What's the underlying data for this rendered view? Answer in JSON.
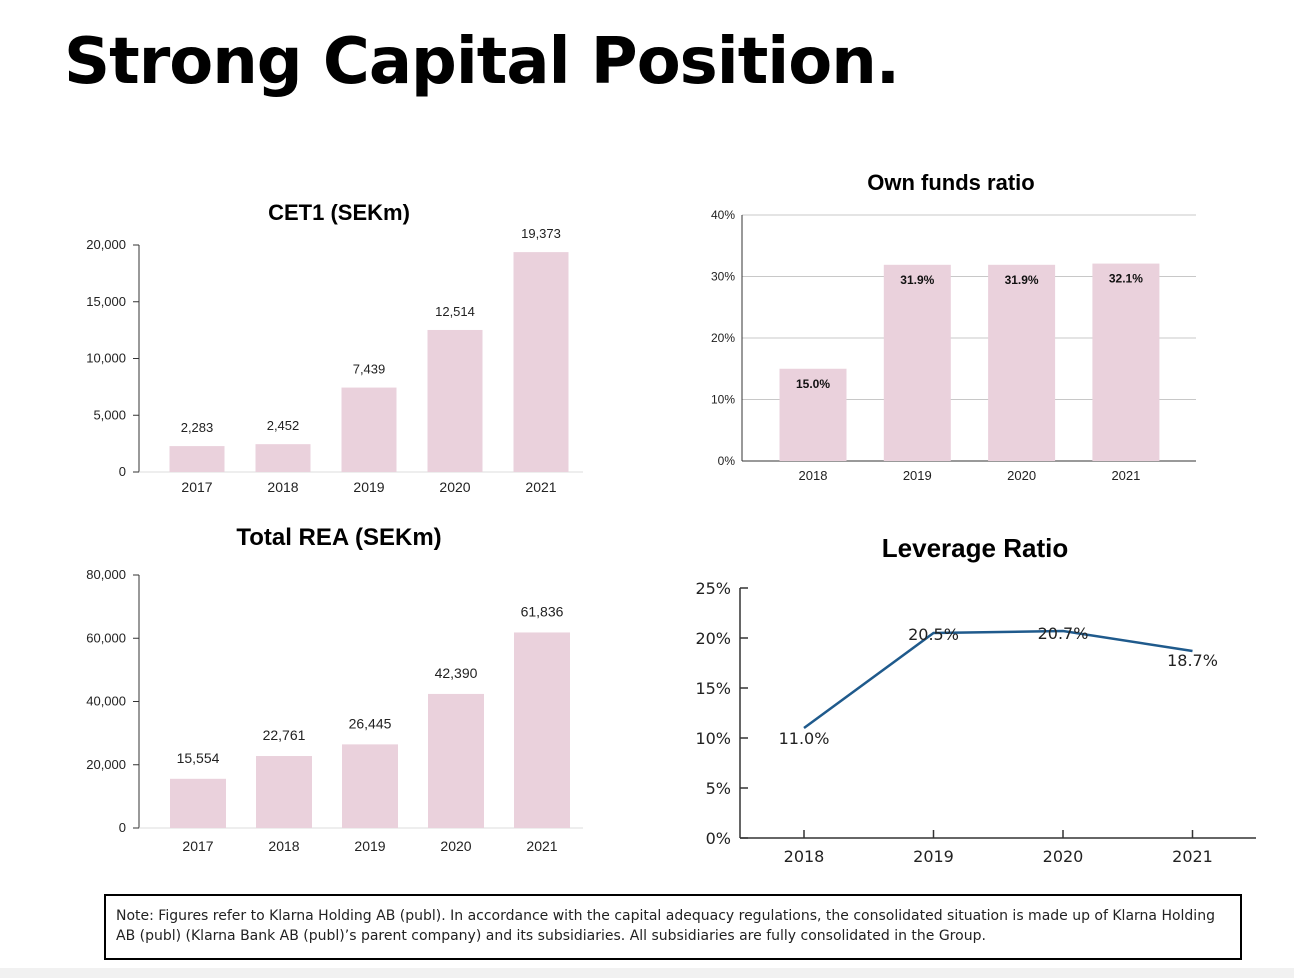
{
  "page": {
    "title": "Strong Capital Position."
  },
  "note": "Note: Figures refer to Klarna Holding AB (publ). In accordance with the capital adequacy regulations, the consolidated situation is made up of Klarna Holding AB (publ) (Klarna Bank AB (publ)’s parent company) and its subsidiaries. All subsidiaries are fully consolidated in the Group.",
  "colors": {
    "bar": "#ead1dc",
    "line": "#1f5a8c",
    "grid": "#c8c8c8",
    "axis": "#333333"
  },
  "chart_data": [
    {
      "id": "cet1",
      "type": "bar",
      "title": "CET1 (SEKm)",
      "categories": [
        "2017",
        "2018",
        "2019",
        "2020",
        "2021"
      ],
      "values": [
        2283,
        2452,
        7439,
        12514,
        19373
      ],
      "value_labels": [
        "2,283",
        "2,452",
        "7,439",
        "12,514",
        "19,373"
      ],
      "ylim": [
        0,
        20000
      ],
      "yticks": [
        0,
        5000,
        10000,
        15000,
        20000
      ],
      "ytick_labels": [
        "0",
        "5,000",
        "10,000",
        "15,000",
        "20,000"
      ],
      "grid": false,
      "xlabel": "",
      "ylabel": ""
    },
    {
      "id": "rea",
      "type": "bar",
      "title": "Total REA (SEKm)",
      "categories": [
        "2017",
        "2018",
        "2019",
        "2020",
        "2021"
      ],
      "values": [
        15554,
        22761,
        26445,
        42390,
        61836
      ],
      "value_labels": [
        "15,554",
        "22,761",
        "26,445",
        "42,390",
        "61,836"
      ],
      "ylim": [
        0,
        80000
      ],
      "yticks": [
        0,
        20000,
        40000,
        60000,
        80000
      ],
      "ytick_labels": [
        "0",
        "20,000",
        "40,000",
        "60,000",
        "80,000"
      ],
      "grid": false,
      "xlabel": "",
      "ylabel": ""
    },
    {
      "id": "own_funds",
      "type": "bar",
      "title": "Own funds ratio",
      "categories": [
        "2018",
        "2019",
        "2020",
        "2021"
      ],
      "values": [
        15.0,
        31.9,
        31.9,
        32.1
      ],
      "value_labels": [
        "15.0%",
        "31.9%",
        "31.9%",
        "32.1%"
      ],
      "ylim": [
        0,
        40
      ],
      "yticks": [
        0,
        10,
        20,
        30,
        40
      ],
      "ytick_labels": [
        "0%",
        "10%",
        "20%",
        "30%",
        "40%"
      ],
      "grid": true,
      "xlabel": "",
      "ylabel": ""
    },
    {
      "id": "leverage",
      "type": "line",
      "title": "Leverage Ratio",
      "categories": [
        "2018",
        "2019",
        "2020",
        "2021"
      ],
      "values": [
        11.0,
        20.5,
        20.7,
        18.7
      ],
      "value_labels": [
        "11.0%",
        "20.5%",
        "20.7%",
        "18.7%"
      ],
      "ylim": [
        0,
        25
      ],
      "yticks": [
        0,
        5,
        10,
        15,
        20,
        25
      ],
      "ytick_labels": [
        "0%",
        "5%",
        "10%",
        "15%",
        "20%",
        "25%"
      ],
      "grid": false,
      "xlabel": "",
      "ylabel": ""
    }
  ]
}
